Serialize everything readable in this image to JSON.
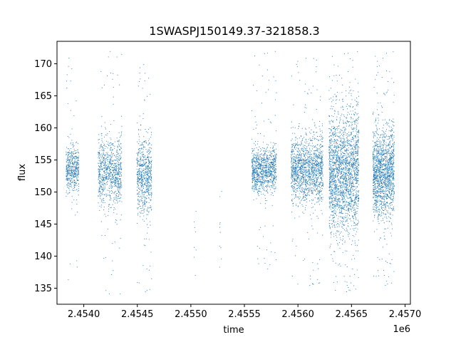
{
  "chart_data": {
    "type": "scatter",
    "title": "1SWASPJ150149.37-321858.3",
    "xlabel": "time",
    "ylabel": "flux",
    "x_offset_label": "1e6",
    "xlim": [
      2453750,
      2457050
    ],
    "ylim": [
      132.5,
      173.5
    ],
    "xticks": [
      {
        "value": 2454000,
        "label": "2.4540"
      },
      {
        "value": 2454500,
        "label": "2.4545"
      },
      {
        "value": 2455000,
        "label": "2.4550"
      },
      {
        "value": 2455500,
        "label": "2.4555"
      },
      {
        "value": 2456000,
        "label": "2.4560"
      },
      {
        "value": 2456500,
        "label": "2.4565"
      },
      {
        "value": 2457000,
        "label": "2.4570"
      }
    ],
    "yticks": [
      {
        "value": 135,
        "label": "135"
      },
      {
        "value": 140,
        "label": "140"
      },
      {
        "value": 145,
        "label": "145"
      },
      {
        "value": 150,
        "label": "150"
      },
      {
        "value": 155,
        "label": "155"
      },
      {
        "value": 160,
        "label": "160"
      },
      {
        "value": 165,
        "label": "165"
      },
      {
        "value": 170,
        "label": "170"
      }
    ],
    "grid": false,
    "marker_color": "#1f77b4",
    "clusters": [
      {
        "x_center": 2453895,
        "x_halfwidth": 60,
        "y_mean": 153.5,
        "y_sd": 1.8,
        "y_range": [
          135,
          172
        ],
        "n": 500
      },
      {
        "x_center": 2454245,
        "x_halfwidth": 110,
        "y_mean": 153.0,
        "y_sd": 2.6,
        "y_range": [
          134,
          172
        ],
        "n": 900
      },
      {
        "x_center": 2454565,
        "x_halfwidth": 70,
        "y_mean": 152.5,
        "y_sd": 2.9,
        "y_range": [
          134,
          171
        ],
        "n": 700
      },
      {
        "x_center": 2455040,
        "x_halfwidth": 10,
        "y_mean": 142.0,
        "y_sd": 3.0,
        "y_range": [
          137,
          147
        ],
        "n": 8
      },
      {
        "x_center": 2455280,
        "x_halfwidth": 12,
        "y_mean": 144.0,
        "y_sd": 4.0,
        "y_range": [
          136,
          151
        ],
        "n": 10
      },
      {
        "x_center": 2455685,
        "x_halfwidth": 115,
        "y_mean": 153.5,
        "y_sd": 1.7,
        "y_range": [
          137,
          172
        ],
        "n": 1000
      },
      {
        "x_center": 2456085,
        "x_halfwidth": 150,
        "y_mean": 153.5,
        "y_sd": 2.6,
        "y_range": [
          135,
          172
        ],
        "n": 1500
      },
      {
        "x_center": 2456430,
        "x_halfwidth": 140,
        "y_mean": 153.0,
        "y_sd": 4.6,
        "y_range": [
          134,
          172
        ],
        "n": 2200
      },
      {
        "x_center": 2456800,
        "x_halfwidth": 100,
        "y_mean": 153.0,
        "y_sd": 3.3,
        "y_range": [
          135,
          172
        ],
        "n": 1600
      }
    ]
  }
}
